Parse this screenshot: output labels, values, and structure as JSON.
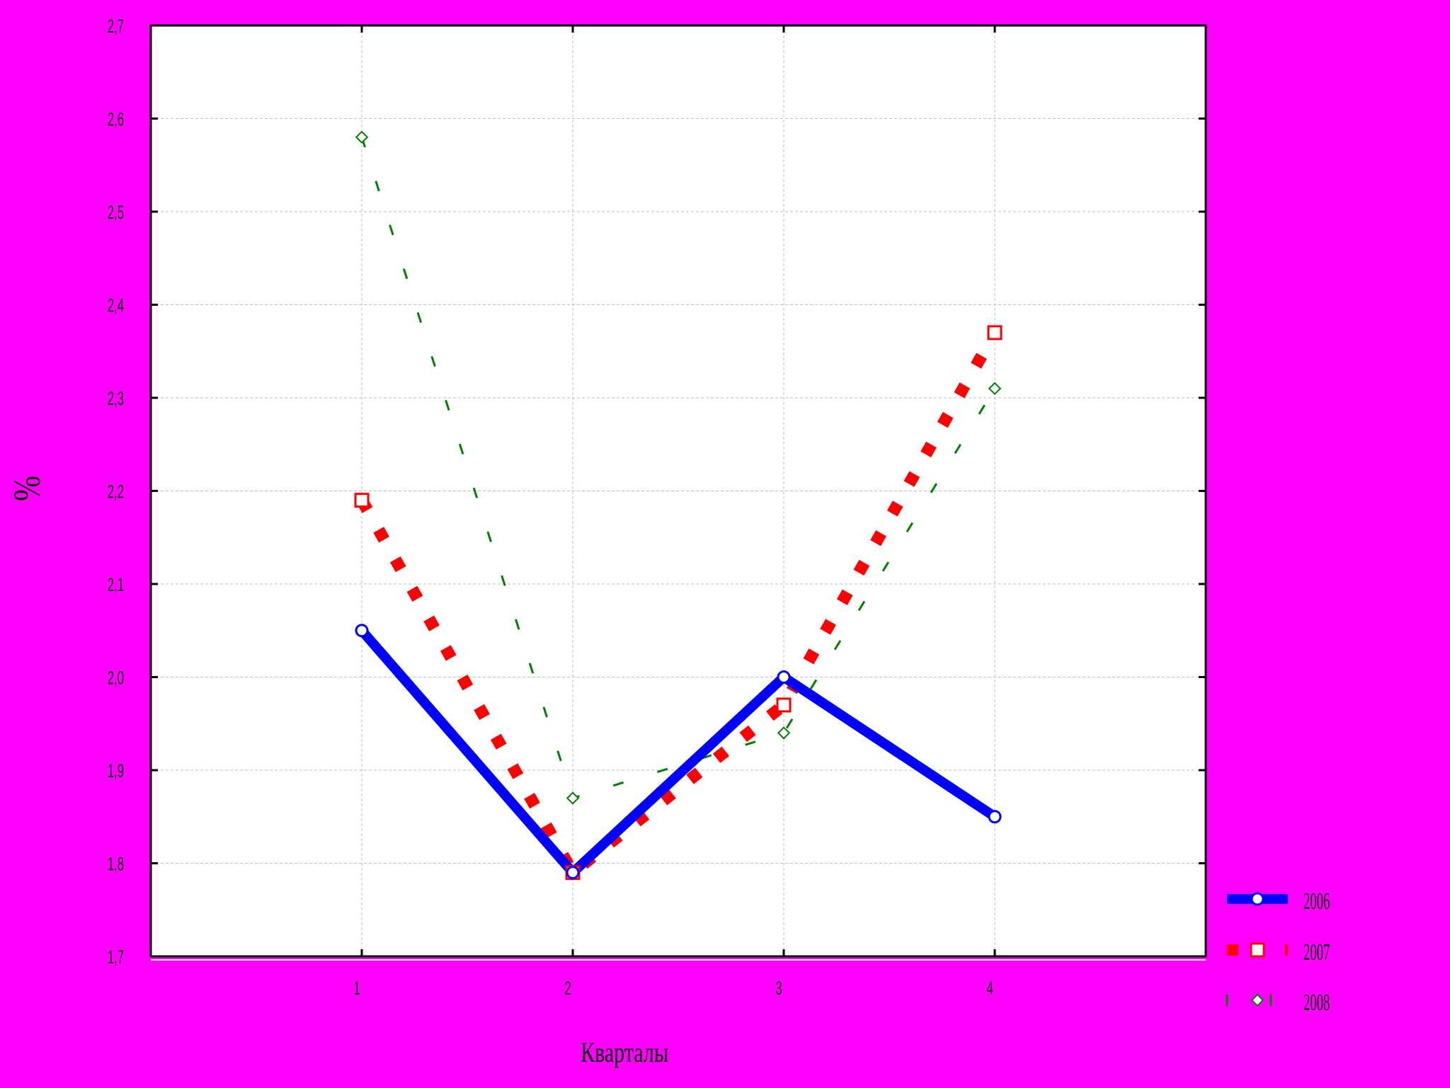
{
  "chart_data": {
    "type": "line",
    "title": "",
    "xlabel": "Кварталы",
    "ylabel": "%",
    "categories": [
      "1",
      "2",
      "3",
      "4"
    ],
    "x": [
      1,
      2,
      3,
      4
    ],
    "xlim": [
      0,
      5
    ],
    "ylim": [
      1.7,
      2.7
    ],
    "y_ticks": [
      "1,7",
      "1,8",
      "1,9",
      "2,0",
      "2,1",
      "2,2",
      "2,3",
      "2,4",
      "2,5",
      "2,6",
      "2,7"
    ],
    "grid": true,
    "legend_position": "bottom-right",
    "series": [
      {
        "name": "2006",
        "values": [
          2.05,
          1.79,
          2.0,
          1.85
        ],
        "color": "#0000FF",
        "line_style": "solid",
        "marker": "circle"
      },
      {
        "name": "2007",
        "values": [
          2.19,
          1.79,
          1.97,
          2.37
        ],
        "color": "#FF0000",
        "line_style": "dotted",
        "marker": "square"
      },
      {
        "name": "2008",
        "values": [
          2.58,
          1.87,
          1.94,
          2.31
        ],
        "color": "#008000",
        "line_style": "dashed",
        "marker": "diamond"
      }
    ]
  }
}
